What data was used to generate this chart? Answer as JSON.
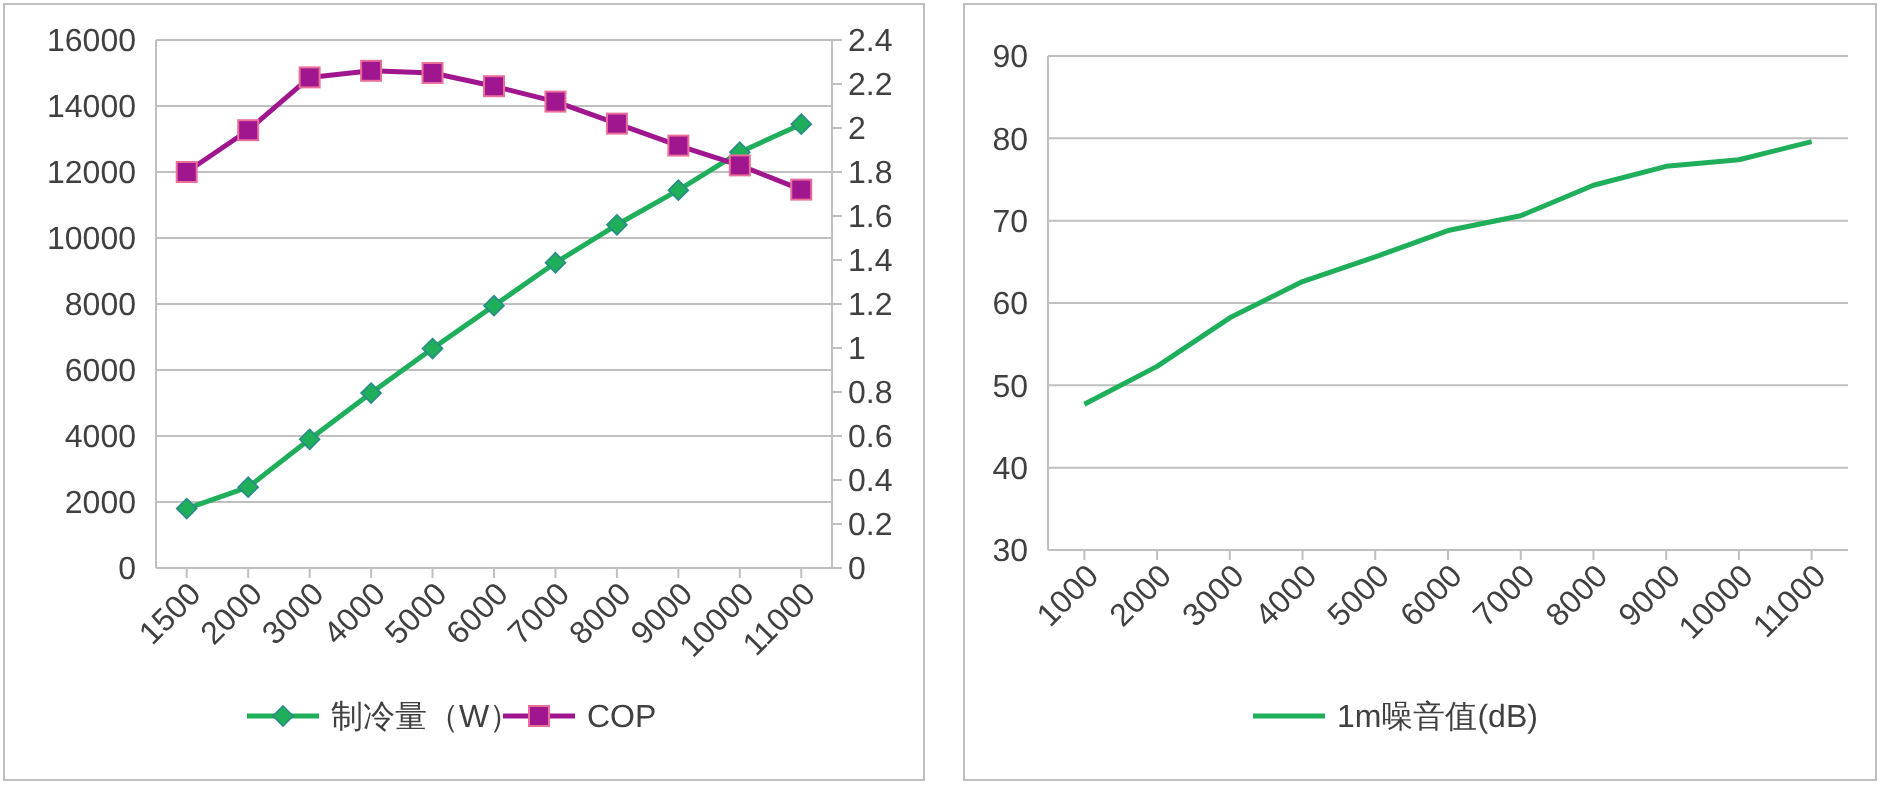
{
  "chart_data": [
    {
      "type": "line",
      "categories": [
        "1500",
        "2000",
        "3000",
        "4000",
        "5000",
        "6000",
        "7000",
        "8000",
        "9000",
        "10000",
        "11000"
      ],
      "series": [
        {
          "name": "制冷量（W）",
          "color": "#1fae5a",
          "marker": "diamond",
          "values": [
            1800,
            2450,
            3900,
            5300,
            6650,
            7950,
            9250,
            10400,
            11450,
            12600,
            13450
          ]
        },
        {
          "name": "COP",
          "color": "#a0168f",
          "marker": "square",
          "axis": "y2",
          "values": [
            1.8,
            1.99,
            2.23,
            2.26,
            2.25,
            2.19,
            2.12,
            2.02,
            1.92,
            1.83,
            1.72
          ]
        }
      ],
      "ylim": [
        0,
        16000
      ],
      "yticks": [
        0,
        2000,
        4000,
        6000,
        8000,
        10000,
        12000,
        14000,
        16000
      ],
      "y2lim": [
        0,
        2.4
      ],
      "y2ticks": [
        0,
        0.2,
        0.4,
        0.6,
        0.8,
        1,
        1.2,
        1.4,
        1.6,
        1.8,
        2,
        2.2,
        2.4
      ],
      "grid": "y",
      "legend": "bottom"
    },
    {
      "type": "line",
      "categories": [
        "1000",
        "2000",
        "3000",
        "4000",
        "5000",
        "6000",
        "7000",
        "8000",
        "9000",
        "10000",
        "11000"
      ],
      "series": [
        {
          "name": "1m噪音值(dB)",
          "color": "#1fae5a",
          "marker": "none",
          "values": [
            47.7,
            52.3,
            58.2,
            62.6,
            65.6,
            68.8,
            70.6,
            74.3,
            76.6,
            77.4,
            79.6
          ]
        }
      ],
      "ylim": [
        30,
        90
      ],
      "yticks": [
        30,
        40,
        50,
        60,
        70,
        80,
        90
      ],
      "grid": "y",
      "legend": "bottom"
    }
  ]
}
